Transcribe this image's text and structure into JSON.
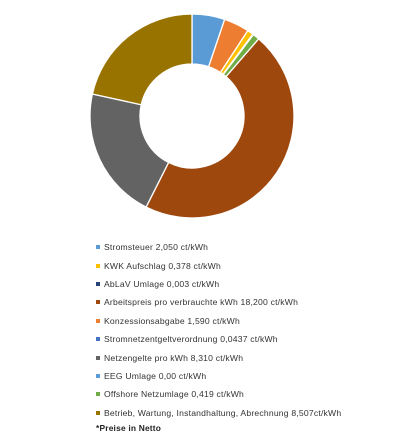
{
  "chart_data": {
    "type": "pie",
    "variant": "donut",
    "start_angle_deg": 0,
    "direction": "clockwise",
    "legend_position": "bottom",
    "series": [
      {
        "label": "Stromsteuer   2,050 ct/kWh",
        "value": 2.05,
        "color": "#5b9bd5"
      },
      {
        "label": "KWK Aufschlag   0,378 ct/kWh",
        "value": 0.378,
        "color": "#ffc000"
      },
      {
        "label": "AbLaV Umlage   0,003 ct/kWh",
        "value": 0.003,
        "color": "#264478"
      },
      {
        "label": "Arbeitspreis pro verbrauchte kWh   18,200 ct/kWh",
        "value": 18.2,
        "color": "#9e480e"
      },
      {
        "label": "Konzessionsabgabe   1,590 ct/kWh",
        "value": 1.59,
        "color": "#ed7d31"
      },
      {
        "label": "Stromnetzentgeltverordnung   0,0437 ct/kWh",
        "value": 0.0437,
        "color": "#4472c4"
      },
      {
        "label": "Netzengelte pro kWh   8,310 ct/kWh",
        "value": 8.31,
        "color": "#636363"
      },
      {
        "label": "EEG Umlage   0,00 ct/kWh",
        "value": 0.0,
        "color": "#5b9bd5"
      },
      {
        "label": "Offshore Netzumlage   0,419 ct/kWh",
        "value": 0.419,
        "color": "#70ad47"
      },
      {
        "label": "Betrieb, Wartung, Instandhaltung, Abrechnung 8,507ct/kWh",
        "value": 8.507,
        "color": "#997300"
      }
    ],
    "slice_order": [
      0,
      4,
      1,
      5,
      2,
      8,
      3,
      6,
      9
    ]
  },
  "footnote": "*Preise in Netto"
}
